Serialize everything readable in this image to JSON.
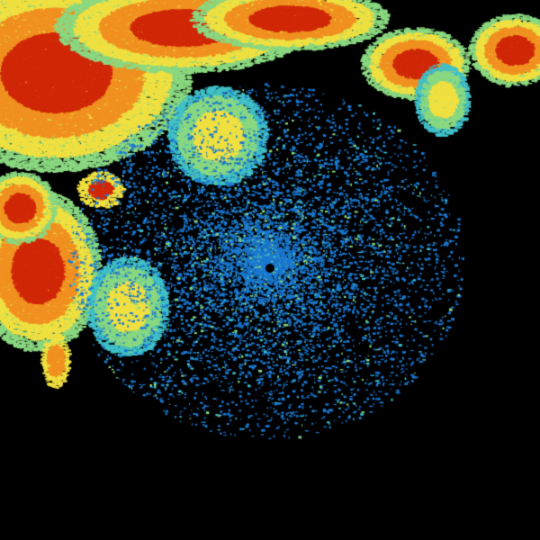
{
  "image": {
    "kind": "radar-reflectivity",
    "background": "#000000",
    "palette": {
      "clutter_blue": "#1a78d0",
      "light_cyan": "#40c0c8",
      "green": "#8ad880",
      "yellow": "#f0e040",
      "orange": "#f09020",
      "red": "#d02808",
      "dark_red": "#b01000"
    }
  }
}
